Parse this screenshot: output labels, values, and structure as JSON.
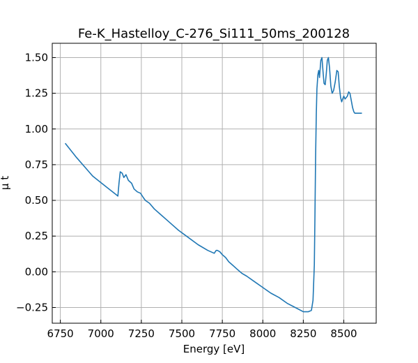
{
  "chart_data": {
    "type": "line",
    "title": "Fe-K_Hastelloy_C-276_Si111_50ms_200128",
    "xlabel": "Energy [eV]",
    "ylabel": "μ t",
    "xlim": [
      6700,
      8700
    ],
    "ylim": [
      -0.36,
      1.6
    ],
    "xticks": [
      6750,
      7000,
      7250,
      7500,
      7750,
      8000,
      8250,
      8500
    ],
    "yticks": [
      -0.25,
      0.0,
      0.25,
      0.5,
      0.75,
      1.0,
      1.25,
      1.5
    ],
    "xtick_labels": [
      "6750",
      "7000",
      "7250",
      "7500",
      "7750",
      "8000",
      "8250",
      "8500"
    ],
    "ytick_labels": [
      "−0.25",
      "0.00",
      "0.25",
      "0.50",
      "0.75",
      "1.00",
      "1.25",
      "1.50"
    ],
    "grid": true,
    "color": "#1f77b4",
    "series": [
      {
        "x": [
          6780,
          6850,
          6950,
          7050,
          7095,
          7105,
          7112,
          7120,
          7132,
          7142,
          7155,
          7170,
          7190,
          7205,
          7225,
          7245,
          7262,
          7275,
          7300,
          7330,
          7370,
          7420,
          7480,
          7540,
          7600,
          7660,
          7700,
          7712,
          7720,
          7735,
          7750,
          7770,
          7790,
          7810,
          7840,
          7870,
          7900,
          7950,
          8000,
          8050,
          8100,
          8150,
          8200,
          8250,
          8280,
          8300,
          8310,
          8318,
          8322,
          8326,
          8330,
          8334,
          8340,
          8345,
          8350,
          8358,
          8365,
          8372,
          8378,
          8385,
          8392,
          8398,
          8405,
          8412,
          8420,
          8428,
          8437,
          8447,
          8457,
          8465,
          8472,
          8480,
          8487,
          8493,
          8500,
          8508,
          8515,
          8522,
          8530,
          8538,
          8546,
          8554,
          8562,
          8568,
          8574,
          8580,
          8586,
          8592,
          8598,
          8605,
          8612
        ],
        "y": [
          0.9,
          0.8,
          0.67,
          0.58,
          0.54,
          0.53,
          0.62,
          0.7,
          0.69,
          0.66,
          0.68,
          0.64,
          0.62,
          0.58,
          0.56,
          0.55,
          0.52,
          0.5,
          0.48,
          0.44,
          0.4,
          0.35,
          0.29,
          0.24,
          0.19,
          0.15,
          0.13,
          0.15,
          0.15,
          0.14,
          0.12,
          0.1,
          0.07,
          0.05,
          0.02,
          -0.01,
          -0.03,
          -0.07,
          -0.11,
          -0.15,
          -0.18,
          -0.22,
          -0.25,
          -0.28,
          -0.28,
          -0.27,
          -0.2,
          0.05,
          0.4,
          0.8,
          1.1,
          1.28,
          1.38,
          1.41,
          1.36,
          1.48,
          1.5,
          1.4,
          1.32,
          1.31,
          1.39,
          1.48,
          1.5,
          1.43,
          1.3,
          1.25,
          1.27,
          1.33,
          1.41,
          1.4,
          1.3,
          1.22,
          1.19,
          1.21,
          1.23,
          1.21,
          1.22,
          1.23,
          1.26,
          1.25,
          1.2,
          1.15,
          1.12,
          1.11,
          1.11,
          1.11,
          1.11,
          1.11,
          1.11,
          1.11,
          1.11
        ]
      }
    ]
  }
}
